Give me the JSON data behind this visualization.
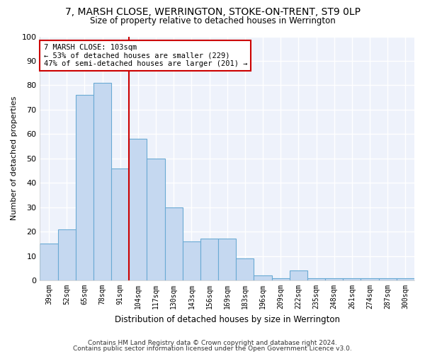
{
  "title": "7, MARSH CLOSE, WERRINGTON, STOKE-ON-TRENT, ST9 0LP",
  "subtitle": "Size of property relative to detached houses in Werrington",
  "xlabel": "Distribution of detached houses by size in Werrington",
  "ylabel": "Number of detached properties",
  "categories": [
    "39sqm",
    "52sqm",
    "65sqm",
    "78sqm",
    "91sqm",
    "104sqm",
    "117sqm",
    "130sqm",
    "143sqm",
    "156sqm",
    "169sqm",
    "183sqm",
    "196sqm",
    "209sqm",
    "222sqm",
    "235sqm",
    "248sqm",
    "261sqm",
    "274sqm",
    "287sqm",
    "300sqm"
  ],
  "values": [
    15,
    21,
    76,
    81,
    46,
    58,
    50,
    30,
    16,
    17,
    17,
    9,
    2,
    1,
    4,
    1,
    1,
    1,
    1,
    1,
    1
  ],
  "bar_color": "#c5d8f0",
  "bar_edge_color": "#6aaad4",
  "vline_color": "#cc0000",
  "annotation_text": "7 MARSH CLOSE: 103sqm\n← 53% of detached houses are smaller (229)\n47% of semi-detached houses are larger (201) →",
  "annotation_box_color": "#ffffff",
  "annotation_box_edge": "#cc0000",
  "ylim": [
    0,
    100
  ],
  "background_color": "#eef2fb",
  "grid_color": "#ffffff",
  "footer1": "Contains HM Land Registry data © Crown copyright and database right 2024.",
  "footer2": "Contains public sector information licensed under the Open Government Licence v3.0."
}
